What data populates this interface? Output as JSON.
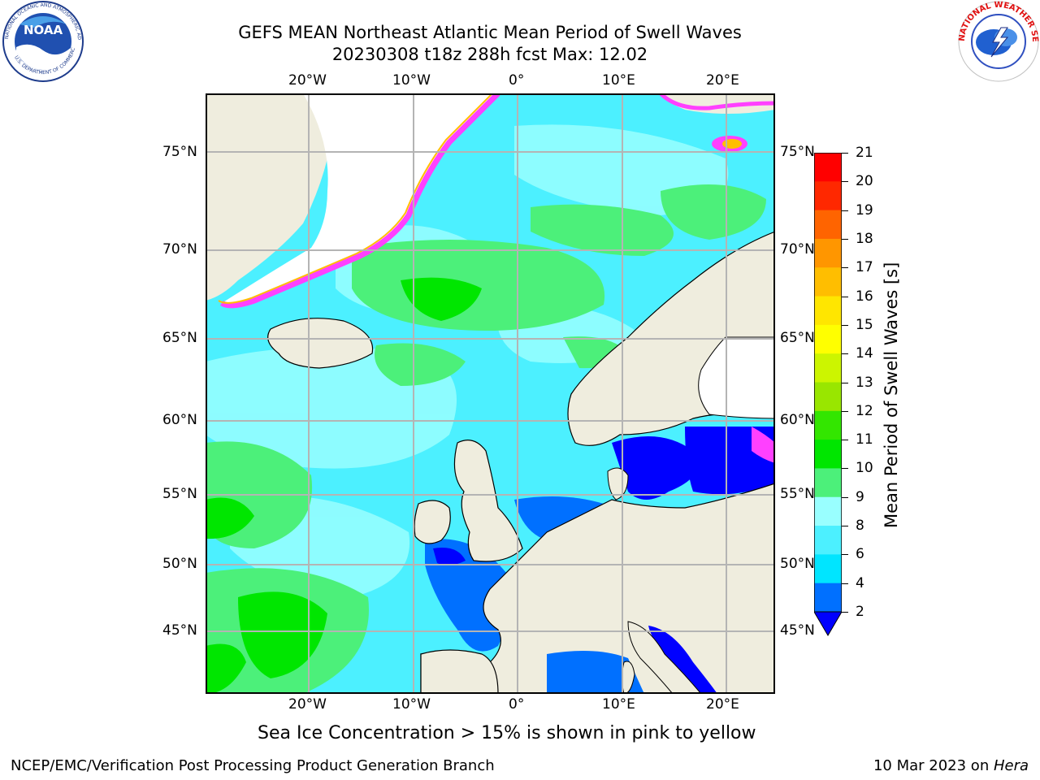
{
  "title": {
    "line1": "GEFS MEAN Northeast Atlantic Mean Period of Swell Waves",
    "line2": "20230308 t18z 288h fcst   Max: 12.02"
  },
  "logos": {
    "noaa_center": "NOAA",
    "noaa_ring": "NATIONAL OCEANIC AND ATMOSPHERIC ADMINISTRATION",
    "noaa_ring_bottom": "U.S. DEPARTMENT OF COMMERCE",
    "nws_ring": "NATIONAL WEATHER SERVICE"
  },
  "map": {
    "lon_ticks_top": [
      "20°W",
      "10°W",
      "0°",
      "10°E",
      "20°E"
    ],
    "lon_ticks_bottom": [
      "20°W",
      "10°W",
      "0°",
      "10°E",
      "20°E"
    ],
    "lat_ticks_left": [
      "75°N",
      "70°N",
      "65°N",
      "60°N",
      "55°N",
      "50°N",
      "45°N"
    ],
    "lat_ticks_right": [
      "75°N",
      "70°N",
      "65°N",
      "60°N",
      "55°N",
      "50°N",
      "45°N"
    ],
    "colors": {
      "land": "#efedde",
      "ice_free_white": "#ffffff",
      "grid": "#b4b4b4",
      "coast": "#000000"
    }
  },
  "colorbar": {
    "label": "Mean Period of Swell Waves [s]",
    "ticks": [
      "2",
      "4",
      "6",
      "8",
      "9",
      "10",
      "11",
      "12",
      "13",
      "14",
      "15",
      "16",
      "17",
      "18",
      "19",
      "20",
      "21"
    ],
    "colors": [
      "#0000ff",
      "#0070ff",
      "#00e5ff",
      "#4cf0ff",
      "#99ffff",
      "#4cf07a",
      "#00e600",
      "#33e600",
      "#99e600",
      "#ccf500",
      "#ffff00",
      "#ffe600",
      "#ffbe00",
      "#ff9600",
      "#ff6400",
      "#ff2800",
      "#ff0000"
    ]
  },
  "caption": "Sea Ice Concentration > 15% is shown in pink to yellow",
  "footer": {
    "left": "NCEP/EMC/Verification Post Processing Product Generation Branch",
    "right_date": "10 Mar 2023 on ",
    "right_host": "Hera"
  }
}
